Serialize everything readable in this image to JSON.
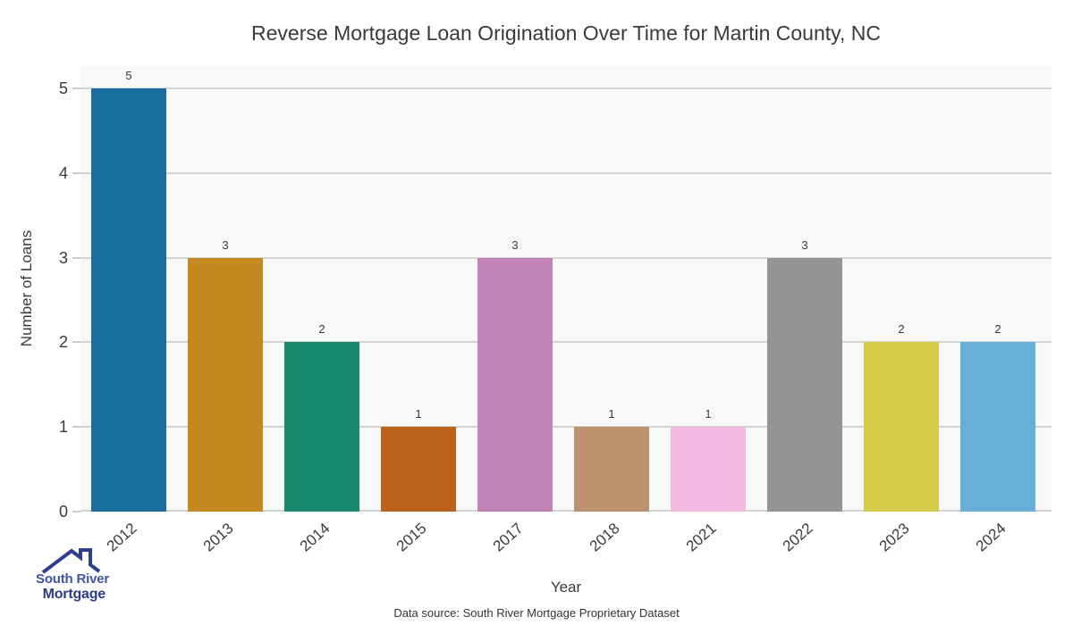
{
  "chart_data": {
    "type": "bar",
    "title": "Reverse Mortgage Loan Origination Over Time for Martin County, NC",
    "xlabel": "Year",
    "ylabel": "Number of Loans",
    "categories": [
      "2012",
      "2013",
      "2014",
      "2015",
      "2017",
      "2018",
      "2021",
      "2022",
      "2023",
      "2024"
    ],
    "values": [
      5,
      3,
      2,
      1,
      3,
      1,
      1,
      3,
      2,
      2
    ],
    "bar_value_labels": [
      "5",
      "3",
      "2",
      "1",
      "3",
      "1",
      "1",
      "3",
      "2",
      "2"
    ],
    "bar_colors": [
      "#176D9C",
      "#C38820",
      "#168A6A",
      "#BA611B",
      "#C283B6",
      "#BD926E",
      "#F1B8E0",
      "#949494",
      "#D5CD4A",
      "#68AFD7"
    ],
    "ylim": [
      0,
      5
    ],
    "yticks": [
      0,
      1,
      2,
      3,
      4,
      5
    ],
    "grid": "horizontal",
    "legend": "none",
    "plot_bg": "#f8f8f8",
    "grid_color": "#d4d4d4",
    "tick_color": "#c9c9c9",
    "text_color": "#3a3a3a"
  },
  "footer": {
    "text": "Data source: South River Mortgage Proprietary Dataset"
  },
  "logo": {
    "line1": "South River",
    "line2": "Mortgage",
    "icon": "house-roof-icon",
    "line1_color": "#3C55A6",
    "line2_color": "#2B3D87",
    "roof_color": "#2D3F8E"
  }
}
